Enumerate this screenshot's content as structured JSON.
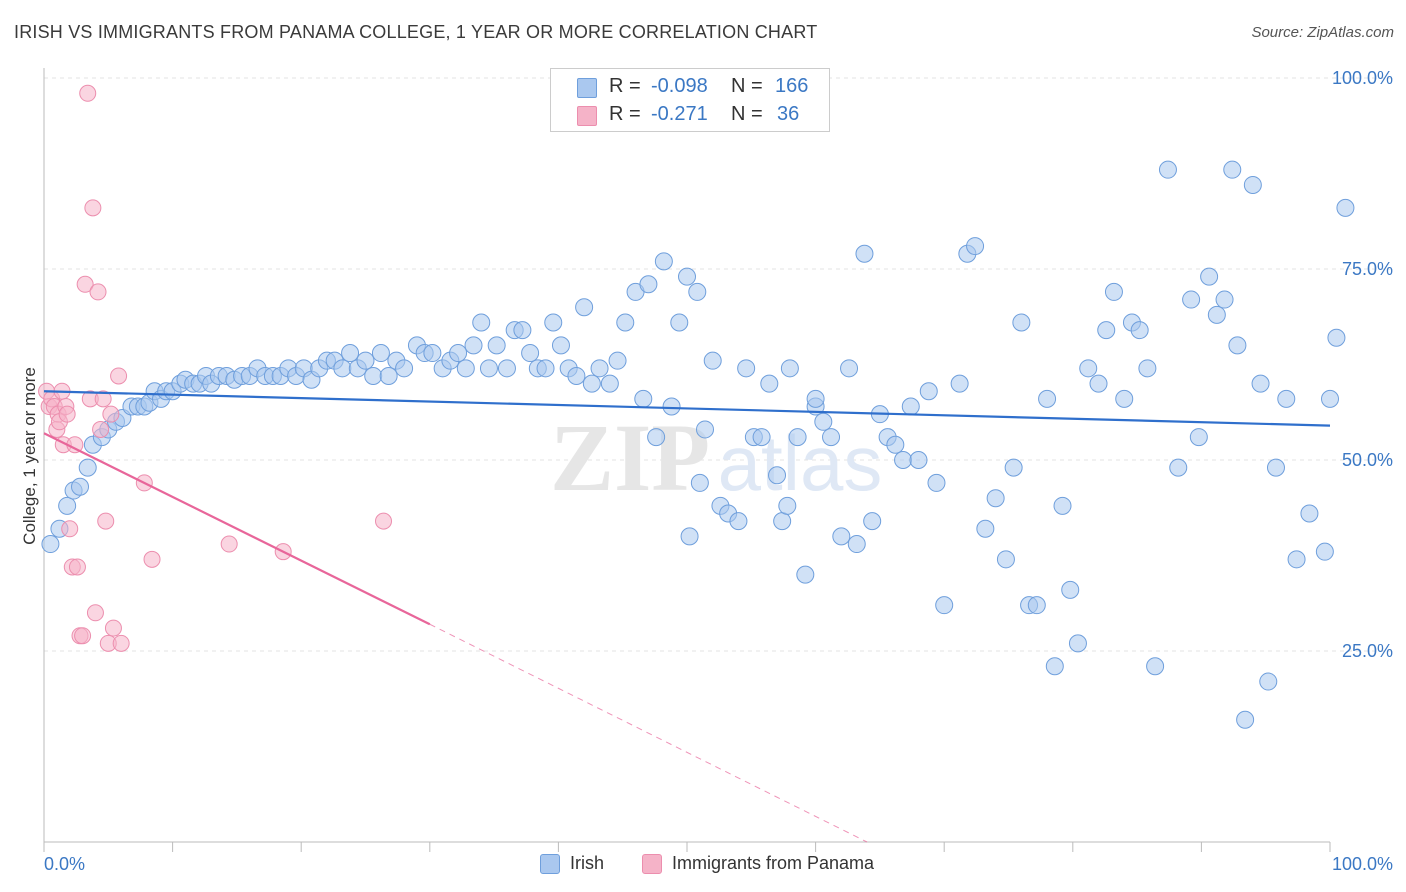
{
  "title": "IRISH VS IMMIGRANTS FROM PANAMA COLLEGE, 1 YEAR OR MORE CORRELATION CHART",
  "source": "Source: ZipAtlas.com",
  "watermark": {
    "zip": "ZIP",
    "atlas": "atlas"
  },
  "stats": {
    "irish": {
      "r_label": "R = ",
      "r_value": "-0.098",
      "n_label": "N = ",
      "n_value": "166"
    },
    "panama": {
      "r_label": "R = ",
      "r_value": "-0.271",
      "n_label": "N = ",
      "n_value": "36"
    }
  },
  "legend": {
    "irish": "Irish",
    "panama": "Immigrants from Panama"
  },
  "colors": {
    "irish_fill": "#aac8ef",
    "irish_stroke": "#6f9fdc",
    "irish_line": "#2f6fcc",
    "panama_fill": "#f5b3c8",
    "panama_stroke": "#ec8eae",
    "panama_line": "#e8669a",
    "tick_label": "#3b78c4"
  },
  "chart_data": {
    "type": "scatter",
    "title": "IRISH VS IMMIGRANTS FROM PANAMA COLLEGE, 1 YEAR OR MORE CORRELATION CHART",
    "xlabel": "",
    "ylabel": "College, 1 year or more",
    "xlim": [
      0,
      100
    ],
    "ylim": [
      0,
      105
    ],
    "x_tick_labels": [
      "0.0%",
      "100.0%"
    ],
    "y_ticks": [
      25,
      50,
      75,
      100
    ],
    "y_tick_labels": [
      "25.0%",
      "50.0%",
      "75.0%",
      "100.0%"
    ],
    "grid": true,
    "legend_position": "bottom-center",
    "series": [
      {
        "name": "Irish",
        "trend": {
          "x": [
            0,
            100
          ],
          "y": [
            59.0,
            54.5
          ]
        },
        "points": [
          [
            0.5,
            39
          ],
          [
            1.2,
            41
          ],
          [
            1.8,
            44
          ],
          [
            2.3,
            46
          ],
          [
            2.8,
            46.5
          ],
          [
            3.4,
            49
          ],
          [
            3.8,
            52
          ],
          [
            4.5,
            53
          ],
          [
            5.0,
            54
          ],
          [
            5.6,
            55
          ],
          [
            6.1,
            55.5
          ],
          [
            6.8,
            57
          ],
          [
            7.3,
            57
          ],
          [
            7.8,
            57
          ],
          [
            8.2,
            57.5
          ],
          [
            8.6,
            59
          ],
          [
            9.1,
            58
          ],
          [
            9.5,
            59
          ],
          [
            10.0,
            59
          ],
          [
            10.6,
            60
          ],
          [
            11.0,
            60.5
          ],
          [
            11.6,
            60
          ],
          [
            12.1,
            60
          ],
          [
            12.6,
            61
          ],
          [
            13.0,
            60
          ],
          [
            13.6,
            61
          ],
          [
            14.2,
            61
          ],
          [
            14.8,
            60.5
          ],
          [
            15.4,
            61
          ],
          [
            16.0,
            61
          ],
          [
            16.6,
            62
          ],
          [
            17.2,
            61
          ],
          [
            17.8,
            61
          ],
          [
            18.4,
            61
          ],
          [
            19.0,
            62
          ],
          [
            19.6,
            61
          ],
          [
            20.2,
            62
          ],
          [
            20.8,
            60.5
          ],
          [
            21.4,
            62
          ],
          [
            22.0,
            63
          ],
          [
            22.6,
            63
          ],
          [
            23.2,
            62
          ],
          [
            23.8,
            64
          ],
          [
            24.4,
            62
          ],
          [
            25.0,
            63
          ],
          [
            25.6,
            61
          ],
          [
            26.2,
            64
          ],
          [
            26.8,
            61
          ],
          [
            27.4,
            63
          ],
          [
            28.0,
            62
          ],
          [
            29.0,
            65
          ],
          [
            29.6,
            64
          ],
          [
            30.2,
            64
          ],
          [
            31.0,
            62
          ],
          [
            31.6,
            63
          ],
          [
            32.2,
            64
          ],
          [
            32.8,
            62
          ],
          [
            33.4,
            65
          ],
          [
            34.0,
            68
          ],
          [
            34.6,
            62
          ],
          [
            35.2,
            65
          ],
          [
            36.0,
            62
          ],
          [
            36.6,
            67
          ],
          [
            37.2,
            67
          ],
          [
            37.8,
            64
          ],
          [
            38.4,
            62
          ],
          [
            39.0,
            62
          ],
          [
            39.6,
            68
          ],
          [
            40.2,
            65
          ],
          [
            40.8,
            62
          ],
          [
            41.4,
            61
          ],
          [
            42.0,
            70
          ],
          [
            42.6,
            60
          ],
          [
            43.2,
            62
          ],
          [
            44.0,
            60
          ],
          [
            44.6,
            63
          ],
          [
            45.2,
            68
          ],
          [
            46.0,
            72
          ],
          [
            46.6,
            58
          ],
          [
            47.0,
            73
          ],
          [
            47.6,
            53
          ],
          [
            48.2,
            76
          ],
          [
            48.8,
            57
          ],
          [
            49.4,
            68
          ],
          [
            50.0,
            74
          ],
          [
            50.8,
            72
          ],
          [
            51.4,
            54
          ],
          [
            52.0,
            63
          ],
          [
            52.6,
            44
          ],
          [
            53.2,
            43
          ],
          [
            54.0,
            42
          ],
          [
            54.6,
            62
          ],
          [
            55.2,
            53
          ],
          [
            55.8,
            53
          ],
          [
            56.4,
            60
          ],
          [
            57.0,
            48
          ],
          [
            57.4,
            42
          ],
          [
            57.8,
            44
          ],
          [
            58.6,
            53
          ],
          [
            59.2,
            35
          ],
          [
            60.0,
            57
          ],
          [
            60.6,
            55
          ],
          [
            61.2,
            53
          ],
          [
            62.0,
            40
          ],
          [
            62.6,
            62
          ],
          [
            63.2,
            39
          ],
          [
            63.8,
            77
          ],
          [
            64.4,
            42
          ],
          [
            65.0,
            56
          ],
          [
            65.6,
            53
          ],
          [
            66.2,
            52
          ],
          [
            66.8,
            50
          ],
          [
            67.4,
            57
          ],
          [
            68.0,
            50
          ],
          [
            68.8,
            59
          ],
          [
            69.4,
            47
          ],
          [
            70.0,
            31
          ],
          [
            71.2,
            60
          ],
          [
            71.8,
            77
          ],
          [
            72.4,
            78
          ],
          [
            73.2,
            41
          ],
          [
            74.0,
            45
          ],
          [
            74.8,
            37
          ],
          [
            75.4,
            49
          ],
          [
            76.0,
            68
          ],
          [
            76.6,
            31
          ],
          [
            77.2,
            31
          ],
          [
            78.0,
            58
          ],
          [
            78.6,
            23
          ],
          [
            79.2,
            44
          ],
          [
            79.8,
            33
          ],
          [
            80.4,
            26
          ],
          [
            81.2,
            62
          ],
          [
            82.0,
            60
          ],
          [
            82.6,
            67
          ],
          [
            83.2,
            72
          ],
          [
            84.0,
            58
          ],
          [
            84.6,
            68
          ],
          [
            85.2,
            67
          ],
          [
            85.8,
            62
          ],
          [
            86.4,
            23
          ],
          [
            87.4,
            88
          ],
          [
            88.2,
            49
          ],
          [
            89.2,
            71
          ],
          [
            89.8,
            53
          ],
          [
            90.6,
            74
          ],
          [
            91.2,
            69
          ],
          [
            91.8,
            71
          ],
          [
            92.4,
            88
          ],
          [
            92.8,
            65
          ],
          [
            93.4,
            16
          ],
          [
            94.0,
            86
          ],
          [
            94.6,
            60
          ],
          [
            95.2,
            21
          ],
          [
            95.8,
            49
          ],
          [
            96.6,
            58
          ],
          [
            97.4,
            37
          ],
          [
            98.4,
            43
          ],
          [
            99.6,
            38
          ],
          [
            100,
            58
          ],
          [
            100.5,
            66
          ],
          [
            101.2,
            83
          ],
          [
            60.0,
            58
          ],
          [
            58.0,
            62
          ],
          [
            50.2,
            40
          ],
          [
            51.0,
            47
          ]
        ]
      },
      {
        "name": "Immigrants from Panama",
        "trend": {
          "x": [
            0,
            30
          ],
          "y": [
            53.5,
            28.5
          ]
        },
        "trend_dashed": {
          "x": [
            30,
            64
          ],
          "y": [
            28.5,
            0
          ]
        },
        "points": [
          [
            0.2,
            59
          ],
          [
            0.4,
            57
          ],
          [
            0.6,
            58
          ],
          [
            0.8,
            57
          ],
          [
            1.0,
            54
          ],
          [
            1.1,
            56
          ],
          [
            1.2,
            55
          ],
          [
            1.4,
            59
          ],
          [
            1.5,
            52
          ],
          [
            1.7,
            57
          ],
          [
            1.8,
            56
          ],
          [
            2.0,
            41
          ],
          [
            2.2,
            36
          ],
          [
            2.4,
            52
          ],
          [
            2.6,
            36
          ],
          [
            2.8,
            27
          ],
          [
            3.0,
            27
          ],
          [
            3.2,
            73
          ],
          [
            3.4,
            98
          ],
          [
            3.6,
            58
          ],
          [
            3.8,
            83
          ],
          [
            4.0,
            30
          ],
          [
            4.2,
            72
          ],
          [
            4.4,
            54
          ],
          [
            4.6,
            58
          ],
          [
            4.8,
            42
          ],
          [
            5.0,
            26
          ],
          [
            5.2,
            56
          ],
          [
            5.4,
            28
          ],
          [
            5.8,
            61
          ],
          [
            6.0,
            26
          ],
          [
            7.8,
            47
          ],
          [
            8.4,
            37
          ],
          [
            14.4,
            39
          ],
          [
            18.6,
            38
          ],
          [
            26.4,
            42
          ]
        ]
      }
    ]
  }
}
